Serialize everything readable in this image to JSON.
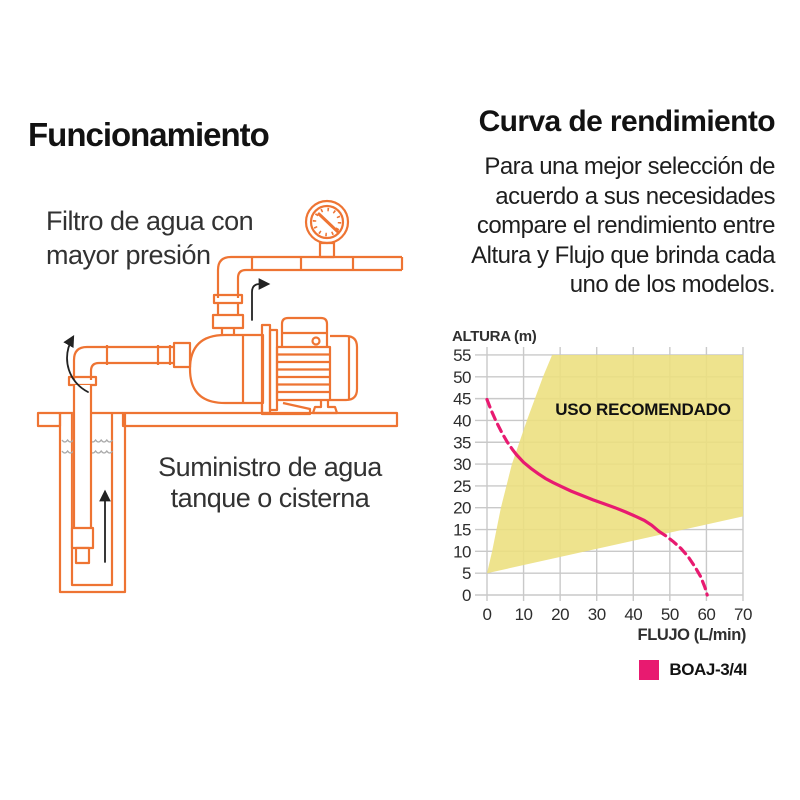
{
  "colors": {
    "diagram_orange": "#ee7433",
    "curve_pink": "#e81a70",
    "area_yellow": "#ecdf7d",
    "grid_gray": "#c9c9c9"
  },
  "left": {
    "title": "Funcionamiento",
    "diagram": {
      "label_filter": [
        "Filtro de agua con",
        "mayor presión"
      ],
      "label_supply": [
        "Suministro de agua",
        "tanque o cisterna"
      ],
      "parts": [
        "pressure-gauge",
        "discharge-pipe",
        "jet-pump",
        "suction-pipe",
        "well-cistern",
        "foot-valve",
        "flow-arrows",
        "water-surface"
      ]
    }
  },
  "right": {
    "title": "Curva de rendimiento",
    "paragraph_lines": [
      "Para una mejor selección de",
      "acuerdo a sus necesidades",
      "compare el rendimiento entre",
      "Altura y Flujo que brinda cada",
      "uno de los modelos."
    ]
  },
  "chart_data": {
    "type": "line",
    "title": "",
    "ylabel": "ALTURA (m)",
    "xlabel": "FLUJO (L/min)",
    "xlim": [
      0,
      70
    ],
    "ylim": [
      0,
      55
    ],
    "xticks": [
      0,
      10,
      20,
      30,
      40,
      50,
      60,
      70
    ],
    "yticks": [
      0,
      5,
      10,
      15,
      20,
      25,
      30,
      35,
      40,
      45,
      50,
      55
    ],
    "grid": true,
    "recommended_area": {
      "label": "USO RECOMENDADO",
      "color": "#ecdf7d",
      "label_pos": [
        42.5,
        42.5
      ],
      "points": [
        [
          0,
          5
        ],
        [
          1.4,
          10
        ],
        [
          3.8,
          20
        ],
        [
          6.8,
          30
        ],
        [
          10.9,
          40
        ],
        [
          15.3,
          50
        ],
        [
          17.8,
          55
        ],
        [
          70,
          55
        ],
        [
          70,
          18
        ]
      ]
    },
    "series": [
      {
        "name": "BOAJ-3/4I",
        "color": "#e81a70",
        "segments": [
          {
            "style": "dashed",
            "points": [
              [
                0,
                44.8
              ],
              [
                1.2,
                42.2
              ],
              [
                2.5,
                39.8
              ],
              [
                4,
                37.3
              ],
              [
                5.5,
                35.1
              ],
              [
                7,
                33.3
              ],
              [
                8,
                32.2
              ]
            ]
          },
          {
            "style": "solid",
            "points": [
              [
                8,
                32.2
              ],
              [
                10,
                30.4
              ],
              [
                12,
                29
              ],
              [
                14,
                27.8
              ],
              [
                16,
                26.7
              ],
              [
                18,
                25.8
              ],
              [
                20,
                25
              ],
              [
                23,
                23.8
              ],
              [
                26,
                22.8
              ],
              [
                29,
                21.8
              ],
              [
                32,
                20.9
              ],
              [
                35,
                20
              ],
              [
                38,
                19
              ],
              [
                41,
                17.9
              ],
              [
                43,
                17.1
              ],
              [
                45,
                16
              ],
              [
                47,
                14.6
              ]
            ]
          },
          {
            "style": "dashed",
            "points": [
              [
                47,
                14.6
              ],
              [
                49,
                13.5
              ],
              [
                51,
                12.2
              ],
              [
                53,
                10.7
              ],
              [
                55,
                8.8
              ],
              [
                57,
                6.3
              ],
              [
                58.5,
                4.1
              ],
              [
                59.6,
                1.7
              ],
              [
                60.2,
                0
              ]
            ]
          }
        ]
      }
    ],
    "legend": {
      "position": "bottom-right",
      "entries": [
        {
          "label": "BOAJ-3/4I",
          "color": "#e81a70"
        }
      ]
    }
  }
}
